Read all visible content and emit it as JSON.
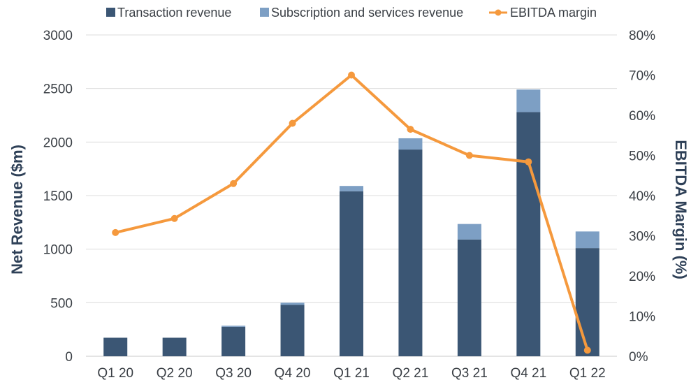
{
  "chart_data": {
    "type": "bar",
    "stacked": true,
    "categories": [
      "Q1 20",
      "Q2 20",
      "Q3 20",
      "Q4 20",
      "Q1 21",
      "Q2 21",
      "Q3 21",
      "Q4 21",
      "Q1 22"
    ],
    "series": [
      {
        "name": "Transaction revenue",
        "type": "bar",
        "axis": "left",
        "color": "#3b5674",
        "values": [
          173,
          173,
          275,
          480,
          1540,
          1930,
          1090,
          2280,
          1010
        ]
      },
      {
        "name": "Subscription and services revenue",
        "type": "bar",
        "axis": "left",
        "color": "#7d9fc4",
        "values": [
          0,
          0,
          10,
          20,
          50,
          105,
          145,
          210,
          155
        ]
      },
      {
        "name": "EBITDA margin",
        "type": "line",
        "axis": "right",
        "color": "#f5993d",
        "values": [
          30.8,
          34.3,
          43.0,
          58.0,
          70.0,
          56.5,
          50.0,
          48.4,
          1.5
        ]
      }
    ],
    "ylabel": "Net Revenue ($m)",
    "y2label": "EBITDA Margin (%)",
    "ylim": [
      0,
      3000
    ],
    "y2lim": [
      0,
      80
    ],
    "yticks": [
      "0",
      "500",
      "1000",
      "1500",
      "2000",
      "2500",
      "3000"
    ],
    "y2ticks": [
      "0%",
      "10%",
      "20%",
      "30%",
      "40%",
      "50%",
      "60%",
      "70%",
      "80%"
    ],
    "grid": true,
    "legend": "top"
  }
}
